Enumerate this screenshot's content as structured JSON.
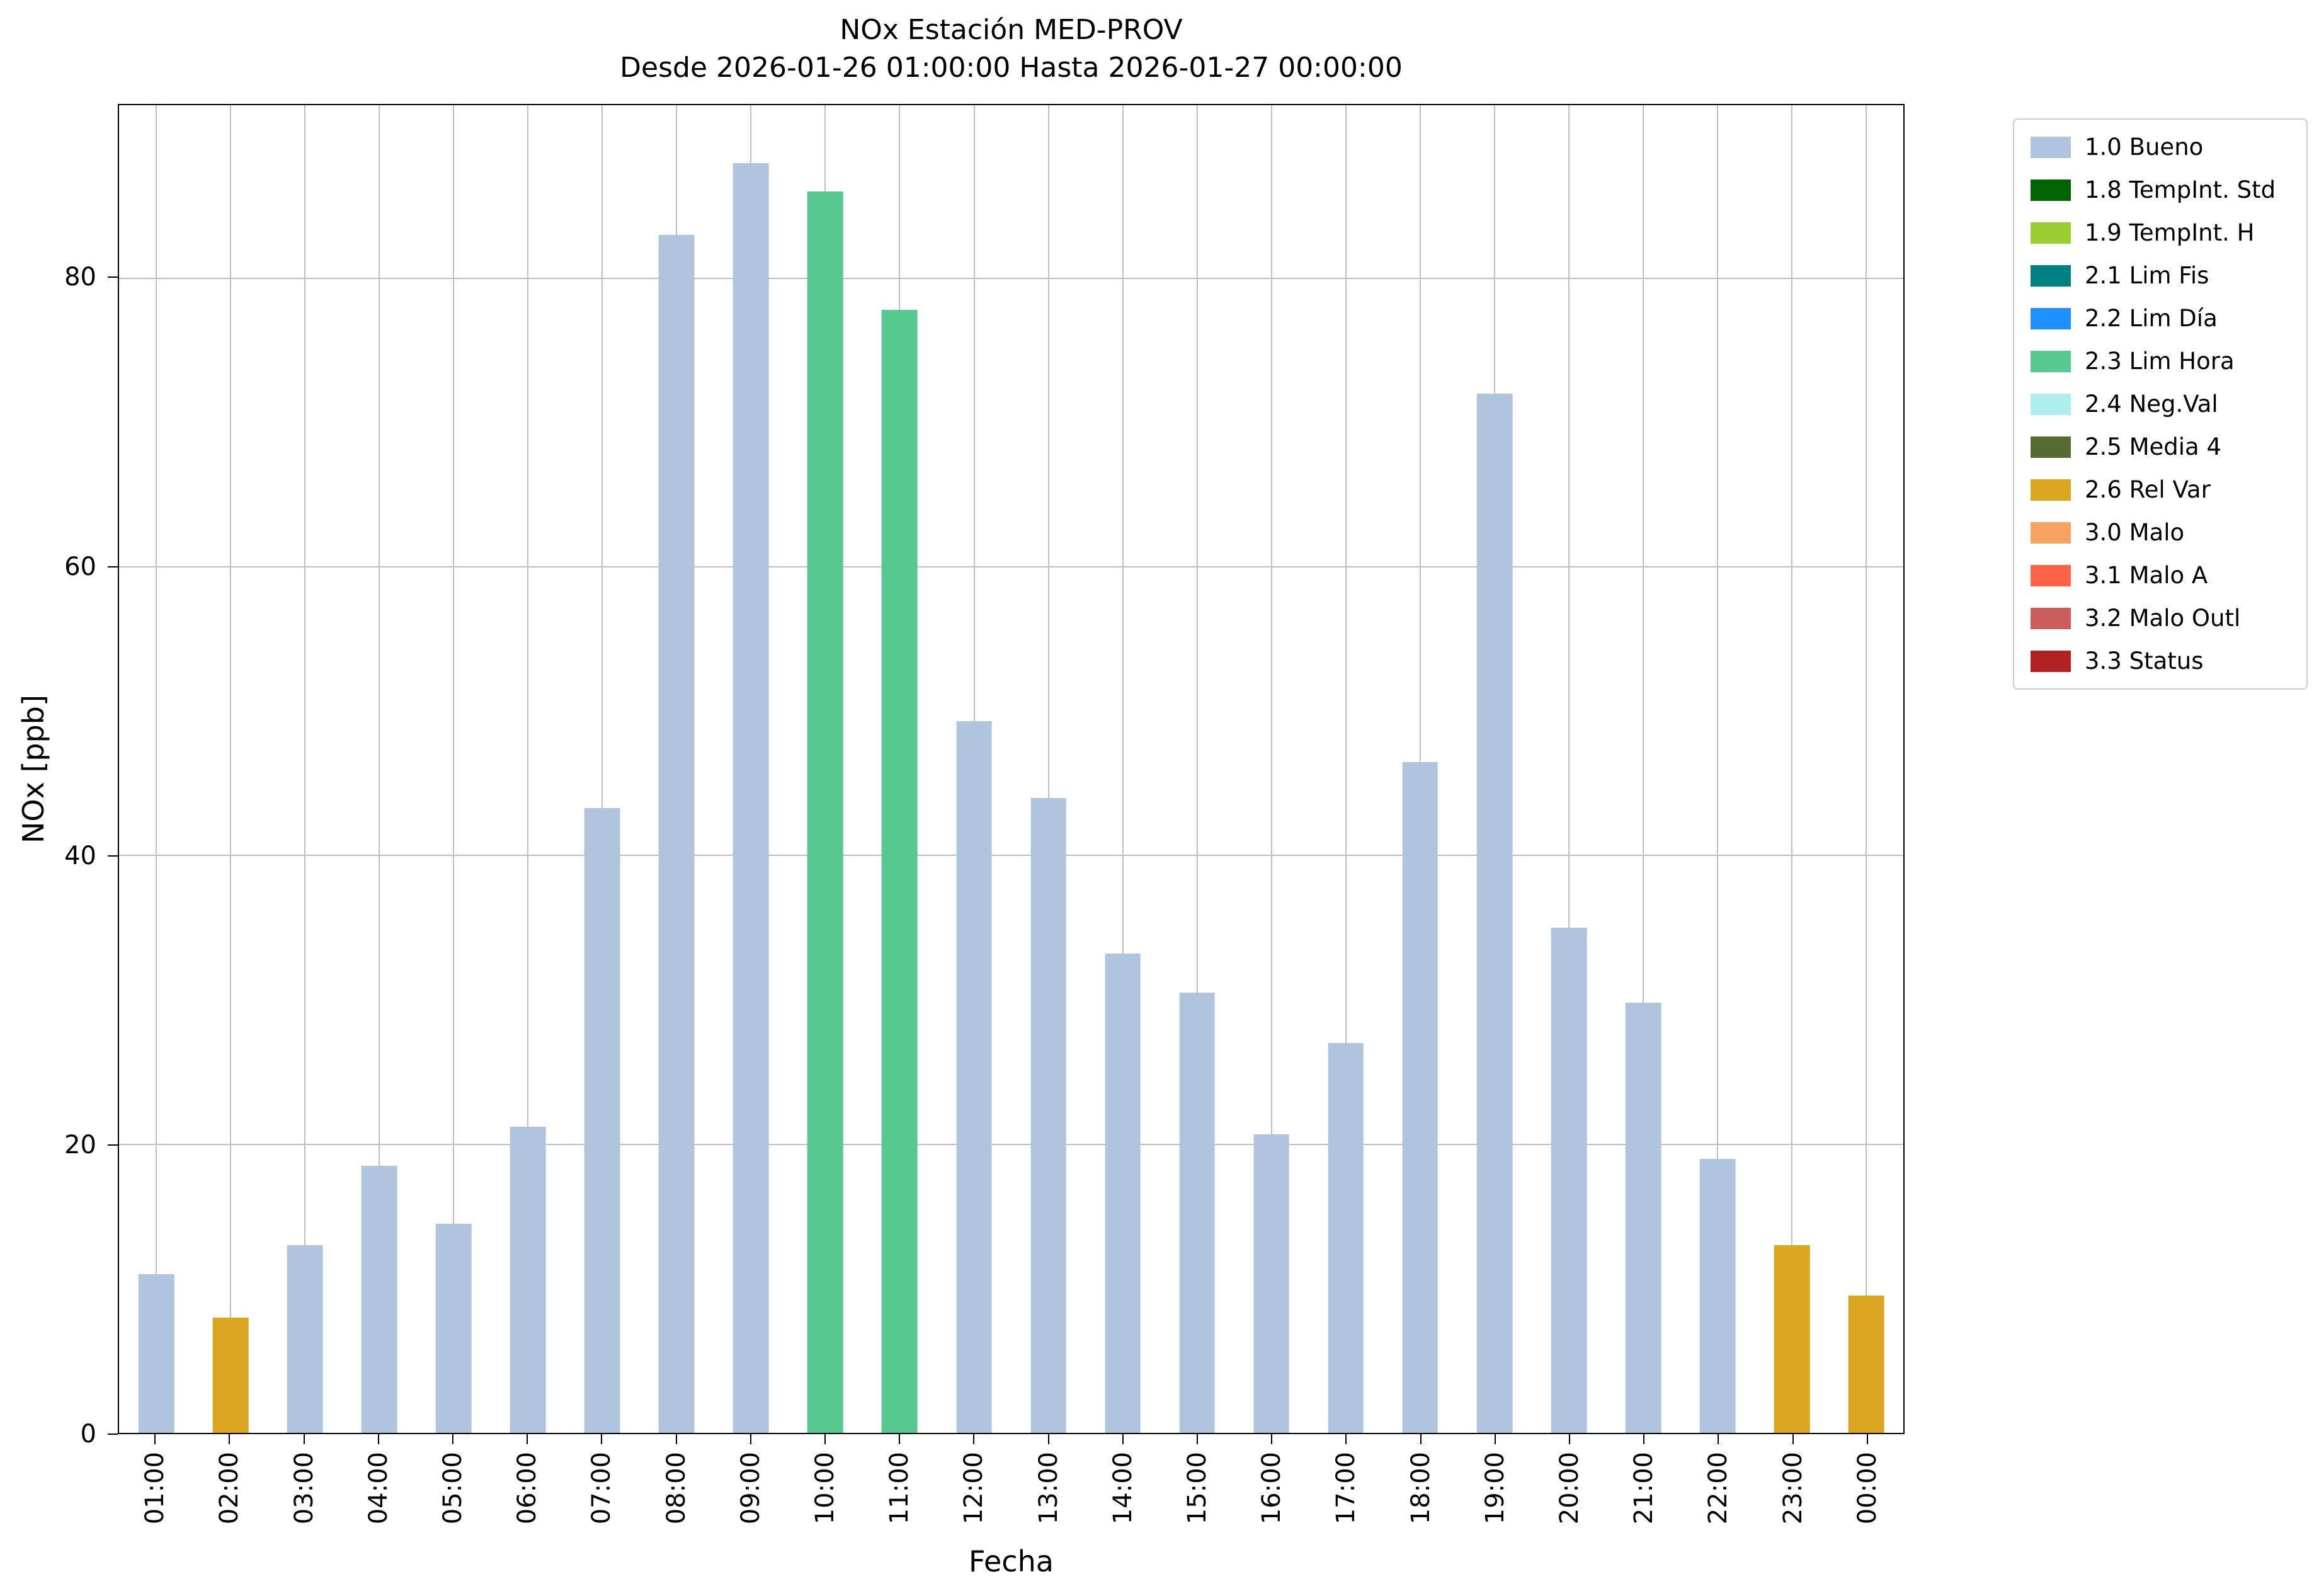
{
  "chart_data": {
    "type": "bar",
    "title": "NOx Estación MED-PROV",
    "subtitle": "Desde 2026-01-26 01:00:00 Hasta 2026-01-27 00:00:00",
    "xlabel": "Fecha",
    "ylabel": "NOx [ppb]",
    "ylim": [
      0,
      92
    ],
    "yticks": [
      0,
      20,
      40,
      60,
      80
    ],
    "grid": true,
    "legend_position": "outside-upper-right",
    "categories": [
      "01:00",
      "02:00",
      "03:00",
      "04:00",
      "05:00",
      "06:00",
      "07:00",
      "08:00",
      "09:00",
      "10:00",
      "11:00",
      "12:00",
      "13:00",
      "14:00",
      "15:00",
      "16:00",
      "17:00",
      "18:00",
      "19:00",
      "20:00",
      "21:00",
      "22:00",
      "23:00",
      "00:00"
    ],
    "values": [
      11,
      8,
      13,
      18.5,
      14.5,
      21.2,
      43.3,
      83,
      88,
      86,
      77.8,
      49.3,
      44,
      33.2,
      30.5,
      20.7,
      27,
      46.5,
      72,
      35,
      29.8,
      19,
      13,
      9.5
    ],
    "statuses": [
      "1.0 Bueno",
      "2.6 Rel Var",
      "1.0 Bueno",
      "1.0 Bueno",
      "1.0 Bueno",
      "1.0 Bueno",
      "1.0 Bueno",
      "1.0 Bueno",
      "1.0 Bueno",
      "2.3 Lim Hora",
      "2.3 Lim Hora",
      "1.0 Bueno",
      "1.0 Bueno",
      "1.0 Bueno",
      "1.0 Bueno",
      "1.0 Bueno",
      "1.0 Bueno",
      "1.0 Bueno",
      "1.0 Bueno",
      "1.0 Bueno",
      "1.0 Bueno",
      "1.0 Bueno",
      "2.6 Rel Var",
      "2.6 Rel Var"
    ],
    "legend": [
      {
        "label": "1.0 Bueno",
        "color": "#B0C4DE"
      },
      {
        "label": "1.8 TempInt. Std",
        "color": "#006400"
      },
      {
        "label": "1.9 TempInt. H",
        "color": "#9ACD32"
      },
      {
        "label": "2.1 Lim Fis",
        "color": "#008080"
      },
      {
        "label": "2.2 Lim Día",
        "color": "#1E90FF"
      },
      {
        "label": "2.3 Lim Hora",
        "color": "#57C88F"
      },
      {
        "label": "2.4 Neg.Val",
        "color": "#AFEEEE"
      },
      {
        "label": "2.5 Media 4",
        "color": "#556B2F"
      },
      {
        "label": "2.6 Rel Var",
        "color": "#DAA520"
      },
      {
        "label": "3.0 Malo",
        "color": "#F4A460"
      },
      {
        "label": "3.1 Malo A",
        "color": "#FF6347"
      },
      {
        "label": "3.2 Malo Outl",
        "color": "#CD5C5C"
      },
      {
        "label": "3.3 Status",
        "color": "#B22222"
      }
    ]
  }
}
